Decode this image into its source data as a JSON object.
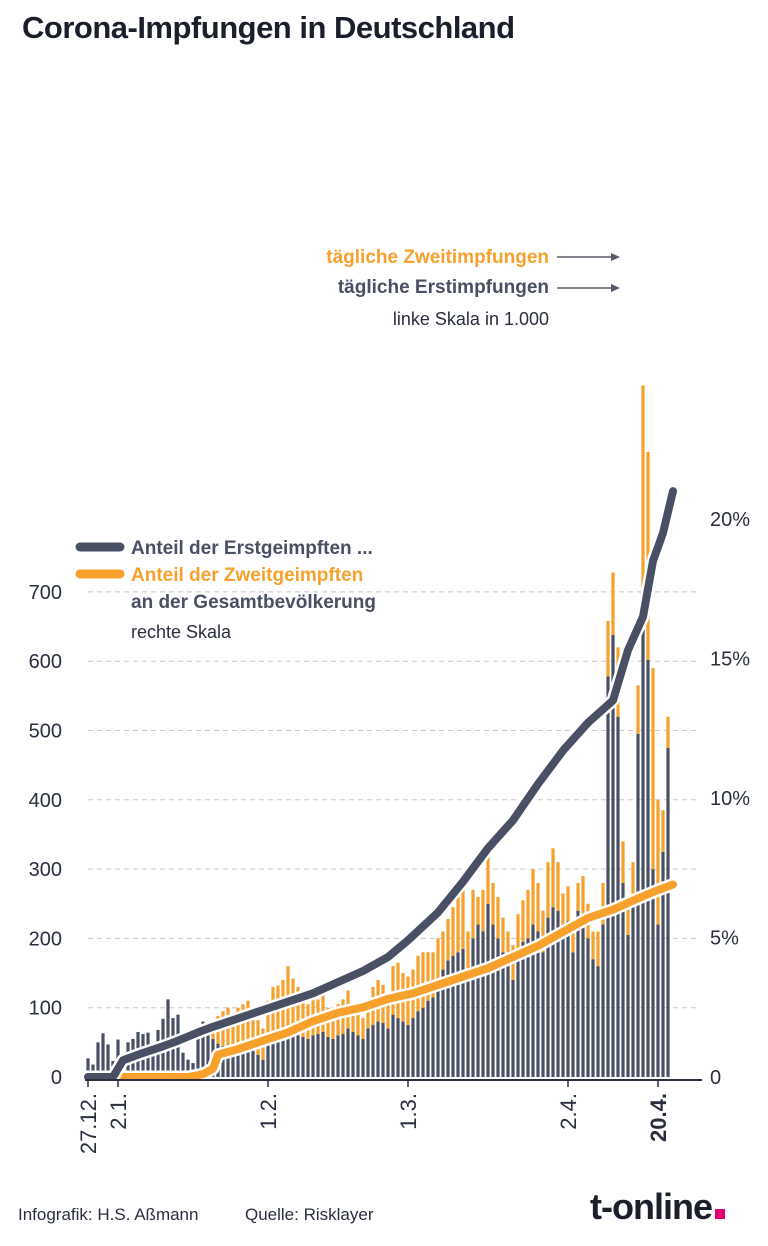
{
  "title": "Corona-Impfungen in Deutschland",
  "footer": {
    "credit": "Infografik: H.S. Aßmann",
    "source": "Quelle: Risklayer"
  },
  "brand": {
    "name": "t-online",
    "dot_color": "#e20074"
  },
  "colors": {
    "first": "#4a5063",
    "second": "#f7a12c",
    "grid": "#c8c8c8",
    "text": "#2a2f3e"
  },
  "annotations": {
    "second_daily": "tägliche Zweitimpfungen",
    "first_daily": "tägliche Erstimpfungen",
    "left_scale": "linke Skala in 1.000",
    "share_first": "Anteil der Erstgeimpften ...",
    "share_second": "Anteil der Zweitgeimpften",
    "share_pop": "an der Gesamtbevölkerung",
    "right_scale": "rechte Skala"
  },
  "chart_data": {
    "type": "bar",
    "title": "Corona-Impfungen in Deutschland",
    "ylabel_left": "linke Skala in 1.000",
    "ylabel_right": "rechte Skala",
    "left_ticks": [
      0,
      100,
      200,
      300,
      400,
      500,
      600,
      700
    ],
    "right_ticks": [
      "0",
      "5%",
      "10%",
      "15%",
      "20%"
    ],
    "ylim_left": [
      0,
      700
    ],
    "ylim_right": [
      0,
      25
    ],
    "x_ticks": [
      {
        "day": 0,
        "label": "27.12."
      },
      {
        "day": 6,
        "label": "2.1."
      },
      {
        "day": 36,
        "label": "1.2."
      },
      {
        "day": 64,
        "label": "1.3."
      },
      {
        "day": 96,
        "label": "2.4."
      },
      {
        "day": 114,
        "label": "20.4."
      }
    ],
    "series": [
      {
        "name": "tägliche Erstimpfungen",
        "unit": "1.000",
        "values": [
          27,
          18,
          50,
          63,
          47,
          23,
          54,
          25,
          50,
          55,
          65,
          62,
          64,
          38,
          68,
          84,
          112,
          85,
          90,
          35,
          25,
          20,
          65,
          80,
          78,
          55,
          48,
          45,
          40,
          35,
          40,
          35,
          40,
          38,
          32,
          25,
          50,
          60,
          62,
          65,
          60,
          62,
          60,
          58,
          55,
          60,
          62,
          65,
          58,
          55,
          60,
          62,
          70,
          65,
          60,
          55,
          70,
          75,
          80,
          78,
          70,
          90,
          85,
          80,
          75,
          85,
          95,
          100,
          110,
          115,
          140,
          155,
          168,
          175,
          180,
          185,
          150,
          200,
          220,
          210,
          250,
          220,
          200,
          180,
          160,
          140,
          185,
          195,
          200,
          220,
          210,
          180,
          230,
          245,
          240,
          215,
          225,
          180,
          240,
          230,
          200,
          170,
          160,
          220,
          578,
          638,
          520,
          280,
          205,
          250,
          495,
          688,
          602,
          300,
          220,
          325,
          475
        ],
        "color": "#4a5063"
      },
      {
        "name": "tägliche Zweitimpfungen",
        "unit": "1.000",
        "values": [
          0,
          0,
          0,
          0,
          0,
          0,
          0,
          0,
          0,
          0,
          0,
          0,
          0,
          0,
          0,
          0,
          0,
          0,
          0,
          0,
          0,
          0,
          0,
          0,
          0,
          20,
          40,
          50,
          60,
          55,
          60,
          70,
          70,
          60,
          50,
          45,
          60,
          70,
          70,
          75,
          100,
          80,
          70,
          60,
          50,
          55,
          50,
          55,
          42,
          40,
          45,
          50,
          55,
          40,
          30,
          30,
          40,
          55,
          60,
          55,
          50,
          70,
          80,
          70,
          70,
          70,
          80,
          80,
          70,
          65,
          60,
          55,
          60,
          70,
          80,
          85,
          60,
          70,
          40,
          60,
          70,
          60,
          60,
          50,
          50,
          50,
          50,
          60,
          70,
          80,
          70,
          60,
          80,
          85,
          70,
          50,
          50,
          40,
          40,
          60,
          50,
          40,
          50,
          60,
          80,
          90,
          100,
          60,
          50,
          60,
          70,
          310,
          300,
          290,
          180,
          60,
          45
        ],
        "color": "#f7a12c"
      },
      {
        "name": "Anteil der Erstgeimpften ...",
        "unit": "%",
        "points": [
          [
            0,
            0
          ],
          [
            5,
            0
          ],
          [
            7,
            0.6
          ],
          [
            10,
            0.8
          ],
          [
            15,
            1.1
          ],
          [
            18,
            1.3
          ],
          [
            22,
            1.6
          ],
          [
            25,
            1.8
          ],
          [
            30,
            2.1
          ],
          [
            35,
            2.4
          ],
          [
            40,
            2.7
          ],
          [
            45,
            3.0
          ],
          [
            50,
            3.4
          ],
          [
            55,
            3.8
          ],
          [
            60,
            4.3
          ],
          [
            64,
            4.9
          ],
          [
            70,
            5.9
          ],
          [
            75,
            7.0
          ],
          [
            80,
            8.2
          ],
          [
            85,
            9.2
          ],
          [
            90,
            10.5
          ],
          [
            95,
            11.7
          ],
          [
            100,
            12.7
          ],
          [
            105,
            13.5
          ],
          [
            108,
            15.3
          ],
          [
            111,
            16.5
          ],
          [
            113,
            18.5
          ],
          [
            115,
            19.5
          ],
          [
            117,
            21.0
          ]
        ]
      },
      {
        "name": "Anteil der Zweitgeimpften an der Gesamtbevölkerung",
        "unit": "%",
        "points": [
          [
            0,
            0
          ],
          [
            20,
            0
          ],
          [
            23,
            0.1
          ],
          [
            25,
            0.3
          ],
          [
            26,
            0.8
          ],
          [
            30,
            1.0
          ],
          [
            35,
            1.3
          ],
          [
            40,
            1.6
          ],
          [
            45,
            2.0
          ],
          [
            50,
            2.3
          ],
          [
            55,
            2.5
          ],
          [
            60,
            2.8
          ],
          [
            65,
            3.0
          ],
          [
            70,
            3.3
          ],
          [
            75,
            3.6
          ],
          [
            80,
            3.9
          ],
          [
            85,
            4.3
          ],
          [
            90,
            4.7
          ],
          [
            95,
            5.2
          ],
          [
            100,
            5.7
          ],
          [
            105,
            6.0
          ],
          [
            110,
            6.4
          ],
          [
            114,
            6.7
          ],
          [
            117,
            6.9
          ]
        ]
      }
    ],
    "legend": "inside",
    "grid": true
  }
}
